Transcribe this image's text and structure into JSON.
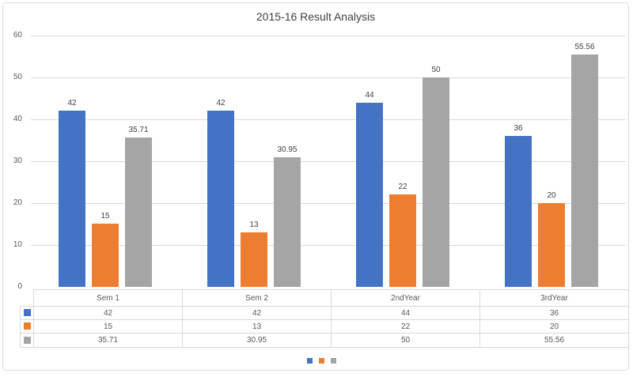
{
  "chart_data": {
    "type": "bar",
    "title": "2015-16 Result Analysis",
    "categories": [
      "Sem 1",
      "Sem 2",
      "2ndYear",
      "3rdYear"
    ],
    "series": [
      {
        "color": "#4472C4",
        "values": [
          42,
          42,
          44,
          36
        ]
      },
      {
        "color": "#ED7D31",
        "values": [
          15,
          13,
          22,
          20
        ]
      },
      {
        "color": "#A5A5A5",
        "values": [
          35.71,
          30.95,
          50,
          55.56
        ]
      }
    ],
    "ylim": [
      0,
      60
    ],
    "y_ticks": [
      0,
      10,
      20,
      30,
      40,
      50,
      60
    ],
    "grid": true,
    "data_labels": true,
    "data_table": true,
    "legend_position": "bottom"
  },
  "colors": {
    "grid": "#D9D9D9",
    "frame_border": "#D9D9D9",
    "axis_text": "#595959",
    "label_text": "#404040",
    "background": "#FFFFFF"
  }
}
